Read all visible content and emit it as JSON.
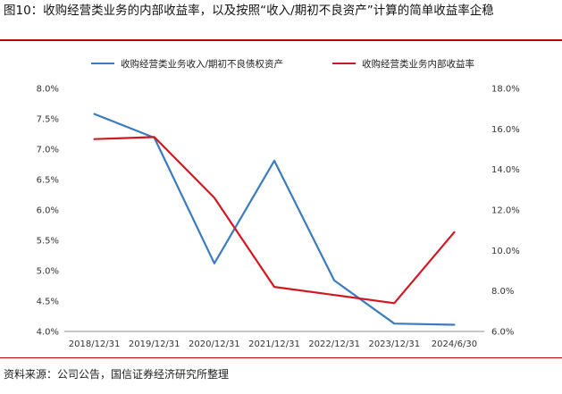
{
  "figure": {
    "title": "图10：收购经营类业务的内部收益率，以及按照“收入/期初不良资产”计算的简单收益率企稳",
    "source": "资料来源：公司公告，国信证券经济研究所整理"
  },
  "chart_data": {
    "type": "line",
    "categories": [
      "2018/12/31",
      "2019/12/31",
      "2020/12/31",
      "2021/12/31",
      "2022/12/31",
      "2023/12/31",
      "2024/6/30"
    ],
    "series": [
      {
        "name": "收购经营类业务收入/期初不良债权资产",
        "axis": "left",
        "color": "#3b7bbf",
        "values": [
          7.58,
          7.19,
          5.12,
          6.81,
          4.84,
          4.13,
          4.11
        ]
      },
      {
        "name": "收购经营类业务内部收益率",
        "axis": "right",
        "color": "#d01820",
        "values": [
          15.5,
          15.6,
          12.6,
          8.2,
          7.8,
          7.4,
          10.9
        ]
      }
    ],
    "y_left": {
      "min": 4.0,
      "max": 8.0,
      "step": 0.5,
      "unit": "%",
      "ticks": [
        "4.0%",
        "4.5%",
        "5.0%",
        "5.5%",
        "6.0%",
        "6.5%",
        "7.0%",
        "7.5%",
        "8.0%"
      ]
    },
    "y_right": {
      "min": 6.0,
      "max": 18.0,
      "step": 2.0,
      "unit": "%",
      "ticks": [
        "6.0%",
        "8.0%",
        "10.0%",
        "12.0%",
        "14.0%",
        "16.0%",
        "18.0%"
      ]
    },
    "grid": false,
    "legend_position": "top"
  }
}
